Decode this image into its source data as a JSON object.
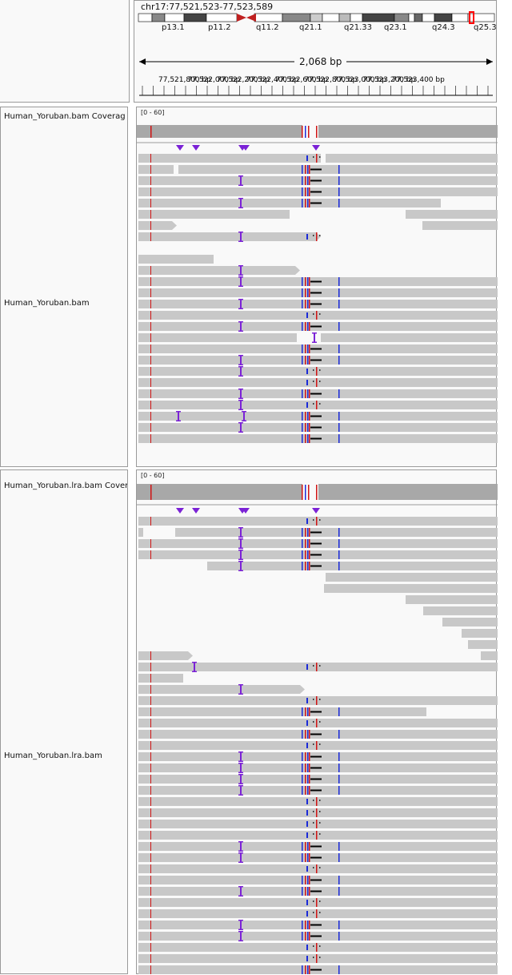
{
  "header": {
    "locus": "chr17:77,521,523-77,523,589",
    "bands": [
      "p13.1",
      "p11.2",
      "q11.2",
      "q21.1",
      "q21.33",
      "q23.1",
      "q24.3",
      "q25.3"
    ],
    "span_label": "2,068 bp",
    "ticks": [
      "77,521,800 bp",
      "77,522,000 bp",
      "77,522,200 bp",
      "77,522,400 bp",
      "77,522,600 bp",
      "77,522,800 bp",
      "77,523,000 bp",
      "77,523,200 bp",
      "77,523,400 bp"
    ]
  },
  "tracks": [
    {
      "coverage_name": "Human_Yoruban.bam Coverage",
      "coverage_range": "[0 - 60]",
      "alignment_name": "Human_Yoruban.bam"
    },
    {
      "coverage_name": "Human_Yoruban.lra.bam Coverage",
      "coverage_range": "[0 - 60]",
      "alignment_name": "Human_Yoruban.lra.bam"
    }
  ],
  "colors": {
    "read": "#c8c8c8",
    "coverage": "#a8a8a8",
    "insertion": "#7b22d6",
    "deletion": "#000000",
    "mismatch_red": "#d01414",
    "mismatch_blue": "#1a2ad8",
    "centromere": "#c02020",
    "current_band": "#ff0000"
  }
}
